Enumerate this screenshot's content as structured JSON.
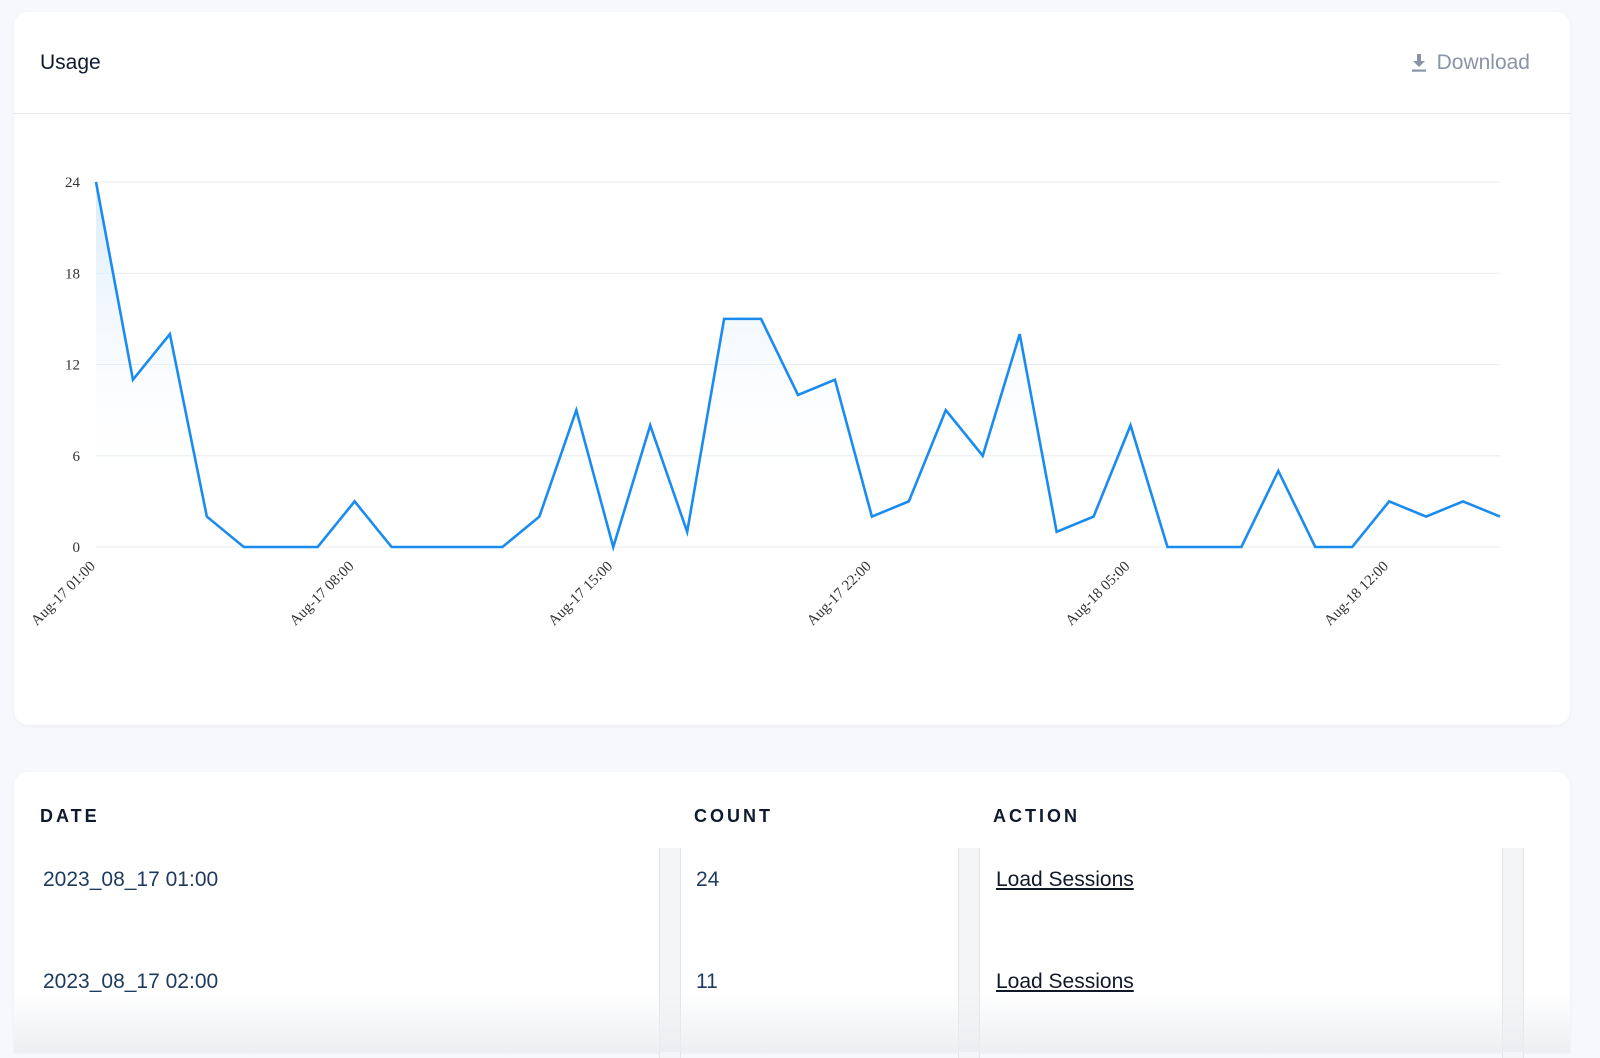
{
  "usage_card": {
    "title": "Usage",
    "download_label": "Download",
    "download_icon": "download-icon"
  },
  "chart_data": {
    "type": "area",
    "title": "",
    "xlabel": "",
    "ylabel": "",
    "ylim": [
      0,
      24
    ],
    "yticks": [
      0,
      6,
      12,
      18,
      24
    ],
    "x_tick_labels": [
      "Aug-17 01:00",
      "Aug-17 08:00",
      "Aug-17 15:00",
      "Aug-17 22:00",
      "Aug-18 05:00",
      "Aug-18 12:00"
    ],
    "x_tick_every": 7,
    "grid": true,
    "colors": {
      "line": "#1a8cf0",
      "fill_top": "#d6e8fb",
      "grid": "#e8ebef"
    },
    "series": [
      {
        "values": [
          24,
          11,
          14,
          2,
          0,
          0,
          0,
          3,
          0,
          0,
          0,
          0,
          2,
          9,
          0,
          8,
          1,
          15,
          15,
          10,
          11,
          2,
          3,
          9,
          6,
          14,
          1,
          2,
          8,
          0,
          0,
          0,
          5,
          0,
          0,
          3,
          2,
          3,
          2
        ]
      }
    ]
  },
  "table": {
    "headers": [
      "DATE",
      "COUNT",
      "ACTION"
    ],
    "rows": [
      {
        "date": "2023_08_17 01:00",
        "count": "24",
        "action": "Load Sessions"
      },
      {
        "date": "2023_08_17 02:00",
        "count": "11",
        "action": "Load Sessions"
      }
    ]
  }
}
